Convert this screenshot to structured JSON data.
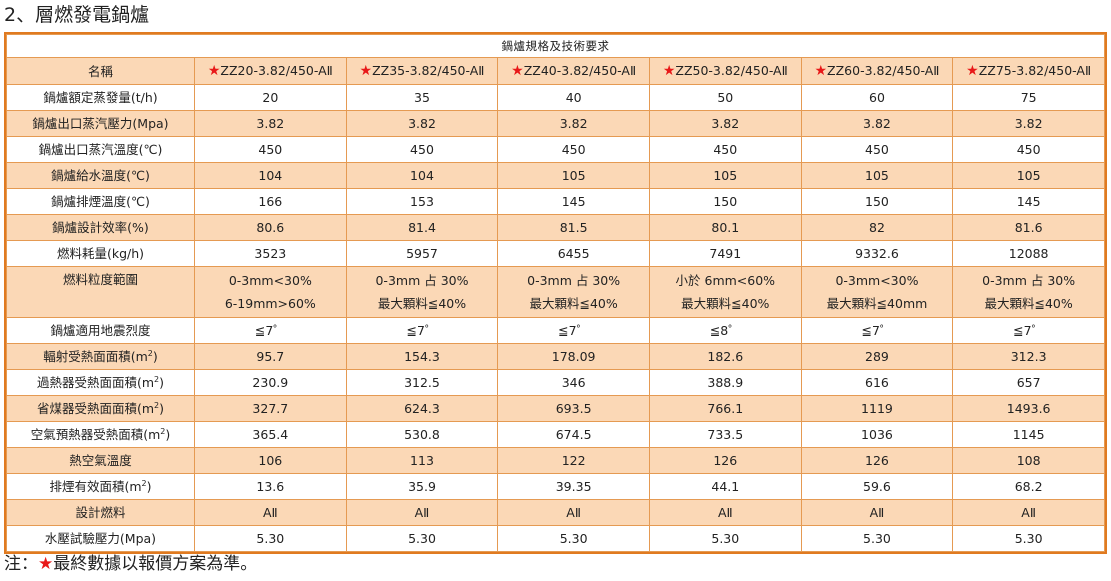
{
  "heading": "2、層燃發電鍋爐",
  "table_title": "鍋爐規格及技術要求",
  "name_label": "名稱",
  "star": "★",
  "models": [
    "ZZ20-3.82/450-AⅡ",
    "ZZ35-3.82/450-AⅡ",
    "ZZ40-3.82/450-AⅡ",
    "ZZ50-3.82/450-AⅡ",
    "ZZ60-3.82/450-AⅡ",
    "ZZ75-3.82/450-AⅡ"
  ],
  "rows": [
    {
      "label": "鍋爐額定蒸發量(t/h)",
      "values": [
        "20",
        "35",
        "40",
        "50",
        "60",
        "75"
      ]
    },
    {
      "label": "鍋爐出口蒸汽壓力(Mpa)",
      "values": [
        "3.82",
        "3.82",
        "3.82",
        "3.82",
        "3.82",
        "3.82"
      ]
    },
    {
      "label": "鍋爐出口蒸汽溫度(℃)",
      "values": [
        "450",
        "450",
        "450",
        "450",
        "450",
        "450"
      ]
    },
    {
      "label": "鍋爐給水溫度(℃)",
      "values": [
        "104",
        "104",
        "105",
        "105",
        "105",
        "105"
      ]
    },
    {
      "label": "鍋爐排煙溫度(℃)",
      "values": [
        "166",
        "153",
        "145",
        "150",
        "150",
        "145"
      ]
    },
    {
      "label": "鍋爐設計效率(%)",
      "values": [
        "80.6",
        "81.4",
        "81.5",
        "80.1",
        "82",
        "81.6"
      ]
    },
    {
      "label": "燃料耗量(kg/h)",
      "values": [
        "3523",
        "5957",
        "6455",
        "7491",
        "9332.6",
        "12088"
      ]
    }
  ],
  "fuel_size": {
    "label": "燃料粒度範圍",
    "line1": [
      "0-3mm<30%",
      "0-3mm 占 30%",
      "0-3mm 占 30%",
      "小於 6mm<60%",
      "0-3mm<30%",
      "0-3mm 占 30%"
    ],
    "line2": [
      "6-19mm>60%",
      "最大顆料≦40%",
      "最大顆料≦40%",
      "最大顆料≦40%",
      "最大顆料≦40mm",
      "最大顆料≦40%"
    ]
  },
  "rows2": [
    {
      "label": "鍋爐適用地震烈度",
      "values": [
        "≦7゜",
        "≦7゜",
        "≦7゜",
        "≦8゜",
        "≦7゜",
        "≦7゜"
      ]
    },
    {
      "label": "輻射受熱面面積(m",
      "sup": "2",
      "suffix": ")",
      "values": [
        "95.7",
        "154.3",
        "178.09",
        "182.6",
        "289",
        "312.3"
      ]
    },
    {
      "label": "過熱器受熱面面積(m",
      "sup": "2",
      "suffix": ")",
      "values": [
        "230.9",
        "312.5",
        "346",
        "388.9",
        "616",
        "657"
      ]
    },
    {
      "label": "省煤器受熱面面積(m",
      "sup": "2",
      "suffix": ")",
      "values": [
        "327.7",
        "624.3",
        "693.5",
        "766.1",
        "1119",
        "1493.6"
      ]
    },
    {
      "label": "空氣預熱器受熱面積(m",
      "sup": "2",
      "suffix": ")",
      "values": [
        "365.4",
        "530.8",
        "674.5",
        "733.5",
        "1036",
        "1145"
      ]
    },
    {
      "label": "熱空氣溫度",
      "values": [
        "106",
        "113",
        "122",
        "126",
        "126",
        "108"
      ]
    },
    {
      "label": "排煙有效面積(m",
      "sup": "2",
      "suffix": ")",
      "values": [
        "13.6",
        "35.9",
        "39.35",
        "44.1",
        "59.6",
        "68.2"
      ]
    },
    {
      "label": "設計燃料",
      "values": [
        "AⅡ",
        "AⅡ",
        "AⅡ",
        "AⅡ",
        "AⅡ",
        "AⅡ"
      ]
    },
    {
      "label": "水壓試驗壓力(Mpa)",
      "values": [
        "5.30",
        "5.30",
        "5.30",
        "5.30",
        "5.30",
        "5.30"
      ]
    }
  ],
  "note": {
    "prefix": "注：",
    "text": "最終數據以報價方案為準。"
  }
}
